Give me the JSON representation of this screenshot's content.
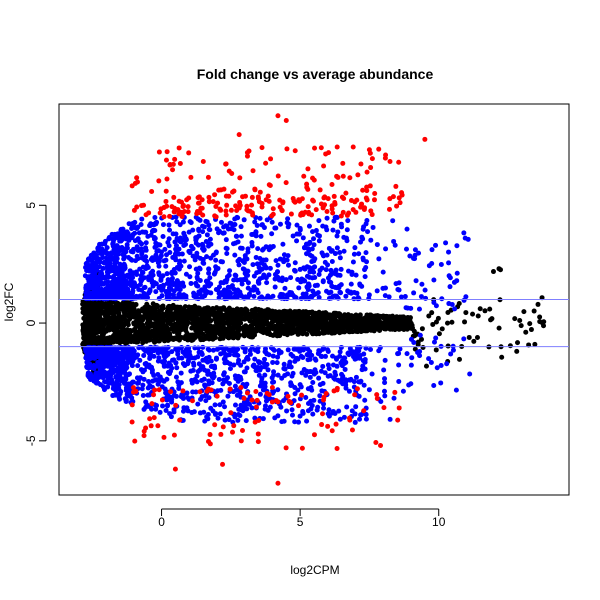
{
  "chart_data": {
    "type": "scatter",
    "title": "Fold change vs average abundance",
    "xlabel": "log2CPM",
    "ylabel": "log2FC",
    "xlim": [
      -3.7,
      14.7
    ],
    "ylim": [
      -7.3,
      9.3
    ],
    "x_ticks": [
      0,
      5,
      10
    ],
    "x_tick_labels": [
      "0",
      "5",
      "10"
    ],
    "y_ticks": [
      -5,
      0,
      5
    ],
    "y_tick_labels": [
      "-5",
      "0",
      "5"
    ],
    "grid": false,
    "legend": "none",
    "reference_lines": {
      "orientation": "horizontal",
      "y": [
        1,
        -1
      ],
      "color": "#7f7fff"
    },
    "series": [
      {
        "color": "#000000",
        "point_count": 2200,
        "criteria": "abs(log2FC) <= 1 or log2CPM >= 8.8",
        "description_points": [
          {
            "x": 8.7,
            "y": 0.1
          },
          {
            "x": 9.4,
            "y": -0.2
          },
          {
            "x": 10.2,
            "y": 0.3
          },
          {
            "x": 10.9,
            "y": -0.3
          },
          {
            "x": 11.6,
            "y": 0.5
          },
          {
            "x": 12.3,
            "y": -0.4
          },
          {
            "x": 13.1,
            "y": 0.2
          },
          {
            "x": 13.8,
            "y": -1.0
          }
        ]
      },
      {
        "color": "#0000ff",
        "point_count": 2600,
        "criteria": "1 < abs(log2FC) <= 4.5 and log2CPM < 8.8"
      },
      {
        "color": "#ff0000",
        "point_count": 230,
        "criteria": "abs(log2FC) > 4.5 and log2CPM < 8.8"
      }
    ],
    "notable_points": [
      {
        "x": 4.2,
        "y": 8.8
      },
      {
        "x": 4.5,
        "y": 8.6
      },
      {
        "x": 9.5,
        "y": 7.8
      },
      {
        "x": 2.8,
        "y": 8.0
      },
      {
        "x": 4.2,
        "y": -6.8
      },
      {
        "x": 7.9,
        "y": -5.2
      },
      {
        "x": 2.2,
        "y": -6.0
      },
      {
        "x": 0.5,
        "y": -6.2
      }
    ]
  }
}
